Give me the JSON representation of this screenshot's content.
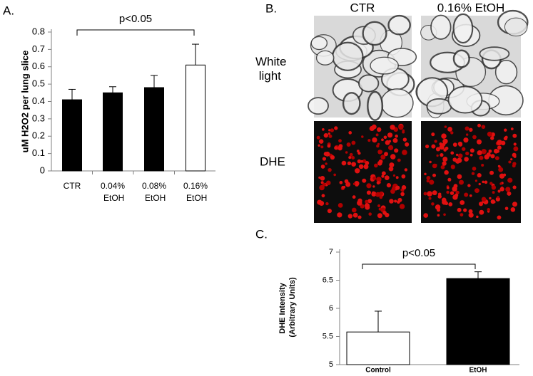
{
  "chart_data": [
    {
      "type": "bar",
      "panel_label": "A.",
      "ylabel": "uM H2O2 per lung slice",
      "categories": [
        "CTR",
        "0.04% EtOH",
        "0.08% EtOH",
        "0.16% EtOH"
      ],
      "values": [
        0.41,
        0.45,
        0.48,
        0.61
      ],
      "errors": [
        0.06,
        0.035,
        0.07,
        0.12
      ],
      "colors": [
        "#000000",
        "#000000",
        "#000000",
        "#ffffff"
      ],
      "ylim": [
        0,
        0.8
      ],
      "yticks": [
        0,
        0.1,
        0.2,
        0.3,
        0.4,
        0.5,
        0.6,
        0.7,
        0.8
      ],
      "annotation": "p<0.05"
    },
    {
      "type": "bar",
      "panel_label": "C.",
      "ylabel": "DHE Intensity (Arbitrary Units)",
      "categories": [
        "Control",
        "EtOH"
      ],
      "values": [
        5.58,
        6.53
      ],
      "errors": [
        0.37,
        0.12
      ],
      "colors": [
        "#ffffff",
        "#000000"
      ],
      "ylim": [
        5,
        7
      ],
      "yticks": [
        5,
        5.5,
        6,
        6.5,
        7
      ],
      "annotation": "p<0.05"
    }
  ],
  "image_panel": {
    "label": "B.",
    "columns": [
      "CTR",
      "0.16% EtOH"
    ],
    "rows": [
      "White light",
      "DHE"
    ]
  }
}
